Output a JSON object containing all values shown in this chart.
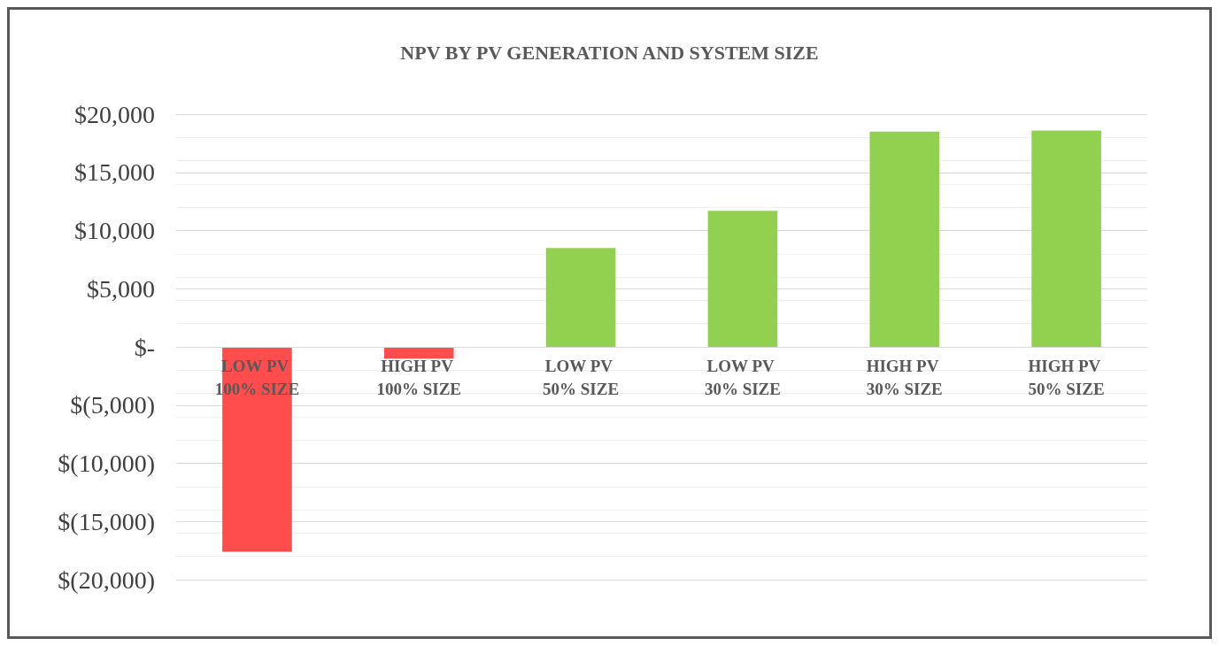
{
  "chart_data": {
    "type": "bar",
    "title": "NPV BY PV GENERATION AND SYSTEM SIZE",
    "categories": [
      "LOW PV 100% SIZE",
      "HIGH PV 100% SIZE",
      "LOW PV 50% SIZE",
      "LOW PV 30% SIZE",
      "HIGH PV 30% SIZE",
      "HIGH PV 50% SIZE"
    ],
    "values": [
      -17600,
      -1000,
      8500,
      11700,
      18500,
      18600
    ],
    "colors": [
      "#ff4d4d",
      "#ff4d4d",
      "#92d050",
      "#92d050",
      "#92d050",
      "#92d050"
    ],
    "ylim": [
      -20000,
      20000
    ],
    "yticks": [
      {
        "value": -20000,
        "label": "$(20,000)"
      },
      {
        "value": -15000,
        "label": "$(15,000)"
      },
      {
        "value": -10000,
        "label": "$(10,000)"
      },
      {
        "value": -5000,
        "label": "$(5,000)"
      },
      {
        "value": 0,
        "label": "$-"
      },
      {
        "value": 5000,
        "label": "$5,000"
      },
      {
        "value": 10000,
        "label": "$10,000"
      },
      {
        "value": 15000,
        "label": "$15,000"
      },
      {
        "value": 20000,
        "label": "$20,000"
      }
    ],
    "grid": true
  }
}
